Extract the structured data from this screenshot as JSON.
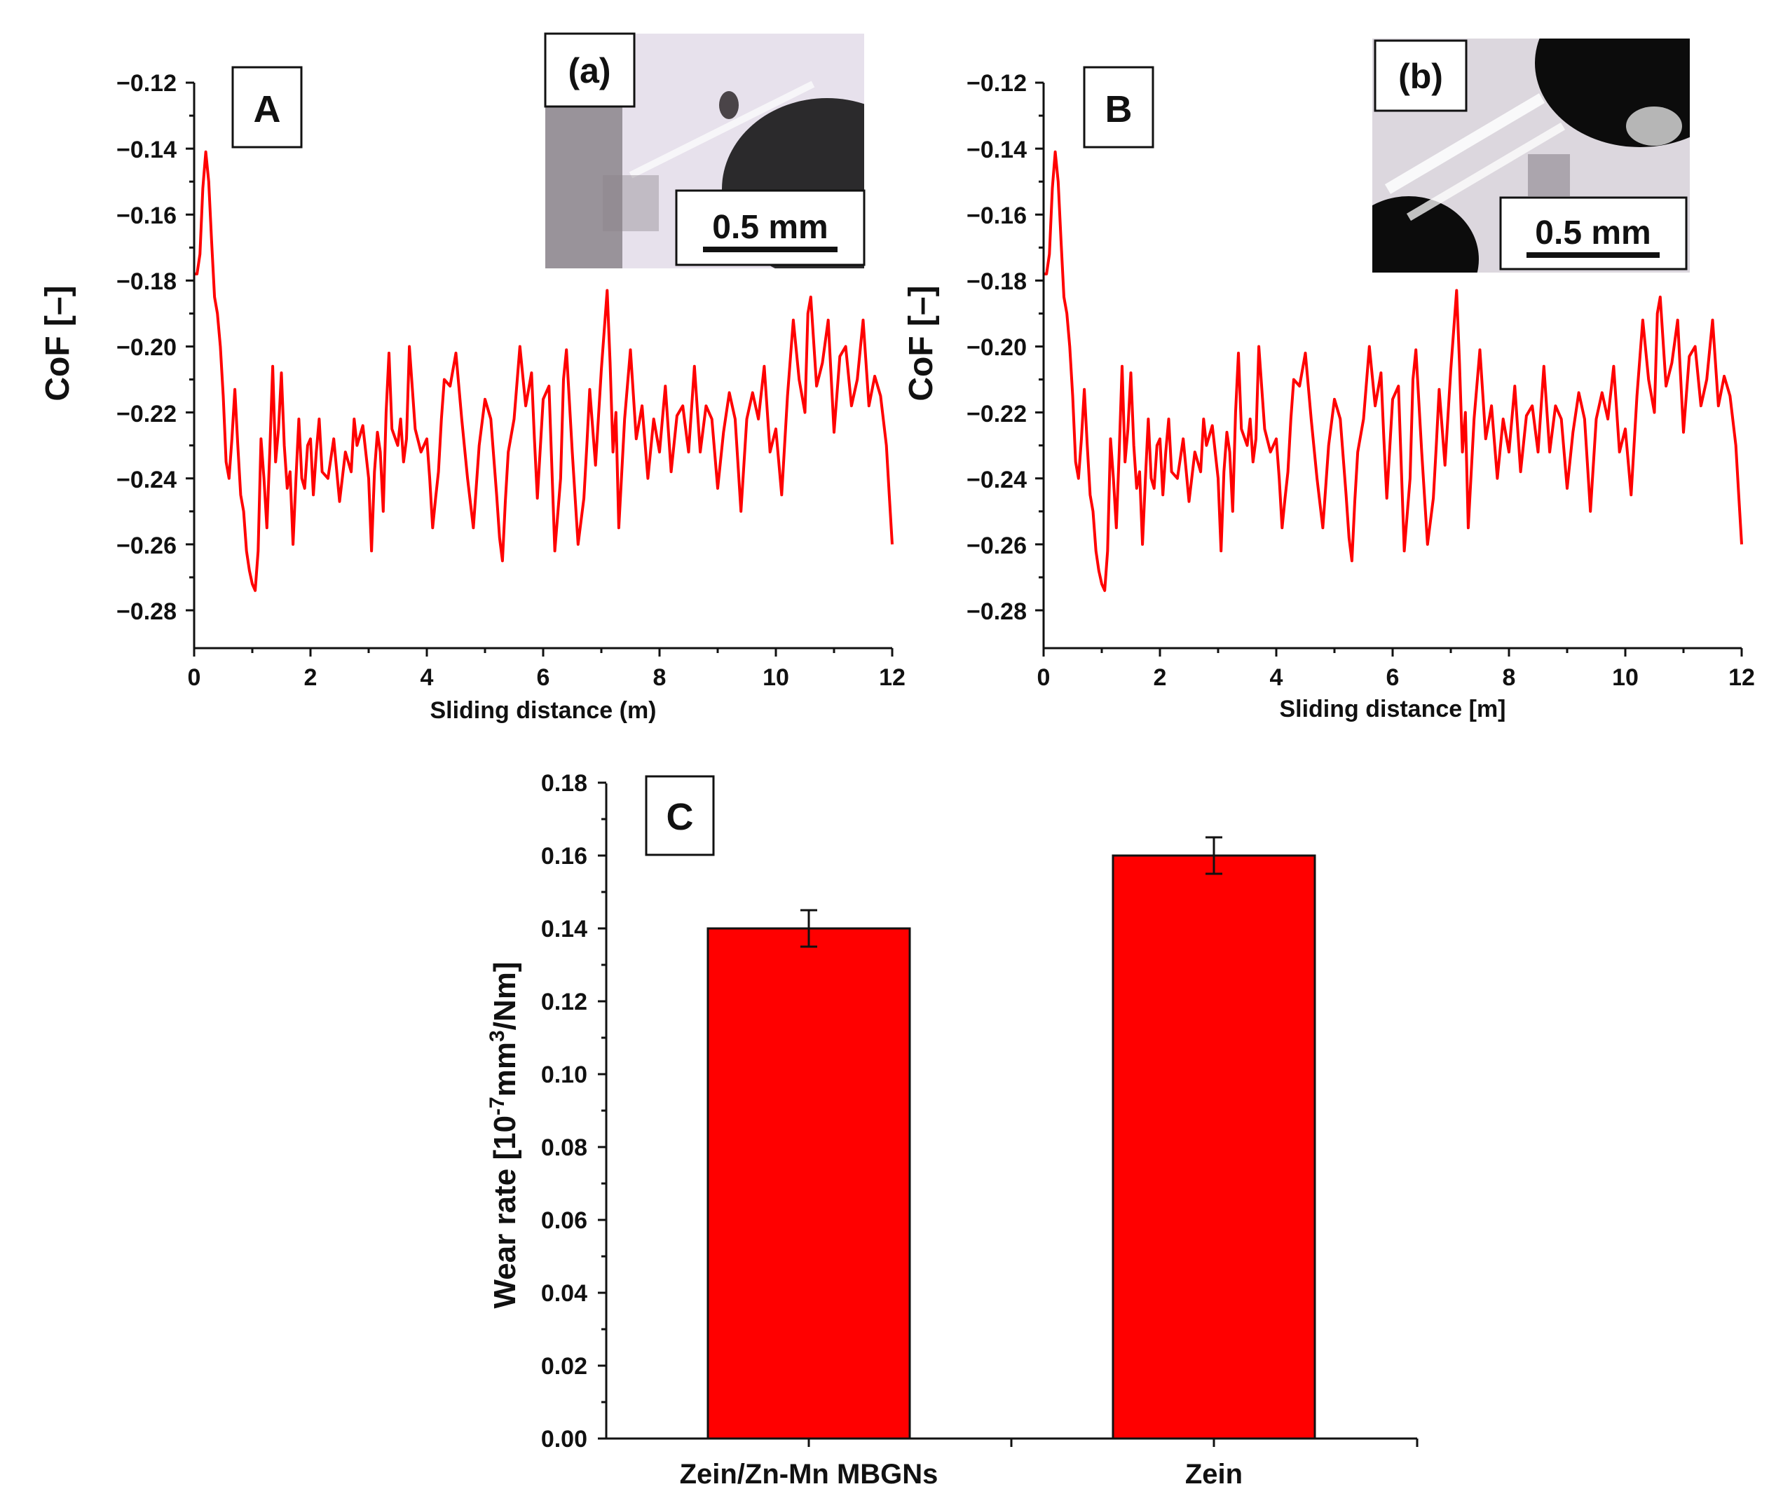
{
  "colors": {
    "series": "#ff0000",
    "axis": "#111111"
  },
  "chart_data": [
    {
      "panel": "A",
      "type": "line",
      "xlabel": "Sliding distance (m)",
      "ylabel": "CoF [–]",
      "xlim": [
        0,
        12
      ],
      "ylim": [
        -0.29,
        -0.12
      ],
      "xticks": [
        "0",
        "2",
        "4",
        "6",
        "8",
        "10",
        "12"
      ],
      "yticks": [
        "−0.12",
        "−0.14",
        "−0.16",
        "−0.18",
        "−0.20",
        "−0.22",
        "−0.24",
        "−0.26",
        "−0.28"
      ],
      "inset": {
        "label": "(a)",
        "scale_bar": "0.5 mm"
      },
      "x": [
        0,
        0.05,
        0.1,
        0.15,
        0.2,
        0.25,
        0.3,
        0.35,
        0.4,
        0.45,
        0.5,
        0.55,
        0.6,
        0.65,
        0.7,
        0.75,
        0.8,
        0.85,
        0.9,
        0.95,
        1.0,
        1.05,
        1.1,
        1.15,
        1.2,
        1.25,
        1.3,
        1.35,
        1.4,
        1.45,
        1.5,
        1.55,
        1.6,
        1.65,
        1.7,
        1.75,
        1.8,
        1.85,
        1.9,
        1.95,
        2.0,
        2.05,
        2.1,
        2.15,
        2.2,
        2.3,
        2.4,
        2.5,
        2.6,
        2.7,
        2.75,
        2.8,
        2.9,
        3.0,
        3.05,
        3.1,
        3.15,
        3.2,
        3.25,
        3.3,
        3.35,
        3.4,
        3.5,
        3.55,
        3.6,
        3.65,
        3.7,
        3.8,
        3.9,
        4.0,
        4.05,
        4.1,
        4.15,
        4.2,
        4.25,
        4.3,
        4.4,
        4.5,
        4.6,
        4.7,
        4.8,
        4.9,
        5.0,
        5.1,
        5.2,
        5.25,
        5.3,
        5.35,
        5.4,
        5.5,
        5.6,
        5.7,
        5.8,
        5.85,
        5.9,
        6.0,
        6.1,
        6.2,
        6.3,
        6.35,
        6.4,
        6.5,
        6.6,
        6.7,
        6.75,
        6.8,
        6.9,
        7.0,
        7.1,
        7.15,
        7.2,
        7.25,
        7.3,
        7.4,
        7.5,
        7.6,
        7.7,
        7.8,
        7.9,
        8.0,
        8.1,
        8.2,
        8.3,
        8.4,
        8.5,
        8.6,
        8.7,
        8.8,
        8.9,
        9.0,
        9.1,
        9.2,
        9.3,
        9.4,
        9.5,
        9.6,
        9.7,
        9.8,
        9.9,
        10.0,
        10.1,
        10.2,
        10.3,
        10.4,
        10.5,
        10.55,
        10.6,
        10.7,
        10.8,
        10.9,
        11.0,
        11.1,
        11.2,
        11.3,
        11.4,
        11.5,
        11.6,
        11.7,
        11.8,
        11.9,
        11.95,
        12.0
      ],
      "y": [
        -0.178,
        -0.178,
        -0.172,
        -0.152,
        -0.141,
        -0.15,
        -0.168,
        -0.185,
        -0.19,
        -0.2,
        -0.215,
        -0.235,
        -0.24,
        -0.228,
        -0.213,
        -0.23,
        -0.245,
        -0.25,
        -0.262,
        -0.268,
        -0.272,
        -0.274,
        -0.262,
        -0.228,
        -0.24,
        -0.255,
        -0.232,
        -0.206,
        -0.235,
        -0.225,
        -0.208,
        -0.23,
        -0.243,
        -0.238,
        -0.26,
        -0.24,
        -0.222,
        -0.24,
        -0.243,
        -0.23,
        -0.228,
        -0.245,
        -0.232,
        -0.222,
        -0.238,
        -0.24,
        -0.228,
        -0.247,
        -0.232,
        -0.238,
        -0.222,
        -0.23,
        -0.224,
        -0.24,
        -0.262,
        -0.238,
        -0.226,
        -0.232,
        -0.25,
        -0.22,
        -0.202,
        -0.225,
        -0.23,
        -0.222,
        -0.235,
        -0.228,
        -0.2,
        -0.225,
        -0.232,
        -0.228,
        -0.24,
        -0.255,
        -0.246,
        -0.238,
        -0.222,
        -0.21,
        -0.212,
        -0.202,
        -0.222,
        -0.24,
        -0.255,
        -0.23,
        -0.216,
        -0.222,
        -0.245,
        -0.258,
        -0.265,
        -0.247,
        -0.232,
        -0.222,
        -0.2,
        -0.218,
        -0.208,
        -0.228,
        -0.246,
        -0.216,
        -0.212,
        -0.262,
        -0.24,
        -0.21,
        -0.201,
        -0.232,
        -0.26,
        -0.246,
        -0.23,
        -0.213,
        -0.236,
        -0.207,
        -0.183,
        -0.205,
        -0.232,
        -0.22,
        -0.255,
        -0.222,
        -0.201,
        -0.228,
        -0.218,
        -0.24,
        -0.222,
        -0.232,
        -0.212,
        -0.238,
        -0.221,
        -0.218,
        -0.232,
        -0.206,
        -0.232,
        -0.218,
        -0.222,
        -0.243,
        -0.226,
        -0.214,
        -0.222,
        -0.25,
        -0.222,
        -0.214,
        -0.222,
        -0.206,
        -0.232,
        -0.225,
        -0.245,
        -0.215,
        -0.192,
        -0.21,
        -0.22,
        -0.19,
        -0.185,
        -0.212,
        -0.205,
        -0.192,
        -0.226,
        -0.203,
        -0.2,
        -0.218,
        -0.21,
        -0.192,
        -0.218,
        -0.209,
        -0.215,
        -0.23,
        -0.245,
        -0.26
      ]
    },
    {
      "panel": "B",
      "type": "line",
      "xlabel": "Sliding distance [m]",
      "ylabel": "CoF [–]",
      "xlim": [
        0,
        12
      ],
      "ylim": [
        -0.29,
        -0.12
      ],
      "xticks": [
        "0",
        "2",
        "4",
        "6",
        "8",
        "10",
        "12"
      ],
      "yticks": [
        "−0.12",
        "−0.14",
        "−0.16",
        "−0.18",
        "−0.20",
        "−0.22",
        "−0.24",
        "−0.26",
        "−0.28"
      ],
      "inset": {
        "label": "(b)",
        "scale_bar": "0.5 mm"
      },
      "x": [
        0,
        0.05,
        0.1,
        0.15,
        0.2,
        0.25,
        0.3,
        0.35,
        0.4,
        0.45,
        0.5,
        0.55,
        0.6,
        0.65,
        0.7,
        0.75,
        0.8,
        0.85,
        0.9,
        0.95,
        1.0,
        1.05,
        1.1,
        1.15,
        1.2,
        1.25,
        1.3,
        1.35,
        1.4,
        1.45,
        1.5,
        1.55,
        1.6,
        1.65,
        1.7,
        1.75,
        1.8,
        1.85,
        1.9,
        1.95,
        2.0,
        2.05,
        2.1,
        2.15,
        2.2,
        2.3,
        2.4,
        2.5,
        2.6,
        2.7,
        2.75,
        2.8,
        2.9,
        3.0,
        3.05,
        3.1,
        3.15,
        3.2,
        3.25,
        3.3,
        3.35,
        3.4,
        3.5,
        3.55,
        3.6,
        3.65,
        3.7,
        3.8,
        3.9,
        4.0,
        4.05,
        4.1,
        4.15,
        4.2,
        4.25,
        4.3,
        4.4,
        4.5,
        4.6,
        4.7,
        4.8,
        4.9,
        5.0,
        5.1,
        5.2,
        5.25,
        5.3,
        5.35,
        5.4,
        5.5,
        5.6,
        5.7,
        5.8,
        5.85,
        5.9,
        6.0,
        6.1,
        6.2,
        6.3,
        6.35,
        6.4,
        6.5,
        6.6,
        6.7,
        6.75,
        6.8,
        6.9,
        7.0,
        7.1,
        7.15,
        7.2,
        7.25,
        7.3,
        7.4,
        7.5,
        7.6,
        7.7,
        7.8,
        7.9,
        8.0,
        8.1,
        8.2,
        8.3,
        8.4,
        8.5,
        8.6,
        8.7,
        8.8,
        8.9,
        9.0,
        9.1,
        9.2,
        9.3,
        9.4,
        9.5,
        9.6,
        9.7,
        9.8,
        9.9,
        10.0,
        10.1,
        10.2,
        10.3,
        10.4,
        10.5,
        10.55,
        10.6,
        10.7,
        10.8,
        10.9,
        11.0,
        11.1,
        11.2,
        11.3,
        11.4,
        11.5,
        11.6,
        11.7,
        11.8,
        11.9,
        11.95,
        12.0
      ],
      "y": [
        -0.178,
        -0.178,
        -0.172,
        -0.152,
        -0.141,
        -0.15,
        -0.168,
        -0.185,
        -0.19,
        -0.2,
        -0.215,
        -0.235,
        -0.24,
        -0.228,
        -0.213,
        -0.23,
        -0.245,
        -0.25,
        -0.262,
        -0.268,
        -0.272,
        -0.274,
        -0.262,
        -0.228,
        -0.24,
        -0.255,
        -0.232,
        -0.206,
        -0.235,
        -0.225,
        -0.208,
        -0.23,
        -0.243,
        -0.238,
        -0.26,
        -0.24,
        -0.222,
        -0.24,
        -0.243,
        -0.23,
        -0.228,
        -0.245,
        -0.232,
        -0.222,
        -0.238,
        -0.24,
        -0.228,
        -0.247,
        -0.232,
        -0.238,
        -0.222,
        -0.23,
        -0.224,
        -0.24,
        -0.262,
        -0.238,
        -0.226,
        -0.232,
        -0.25,
        -0.22,
        -0.202,
        -0.225,
        -0.23,
        -0.222,
        -0.235,
        -0.228,
        -0.2,
        -0.225,
        -0.232,
        -0.228,
        -0.24,
        -0.255,
        -0.246,
        -0.238,
        -0.222,
        -0.21,
        -0.212,
        -0.202,
        -0.222,
        -0.24,
        -0.255,
        -0.23,
        -0.216,
        -0.222,
        -0.245,
        -0.258,
        -0.265,
        -0.247,
        -0.232,
        -0.222,
        -0.2,
        -0.218,
        -0.208,
        -0.228,
        -0.246,
        -0.216,
        -0.212,
        -0.262,
        -0.24,
        -0.21,
        -0.201,
        -0.232,
        -0.26,
        -0.246,
        -0.23,
        -0.213,
        -0.236,
        -0.207,
        -0.183,
        -0.205,
        -0.232,
        -0.22,
        -0.255,
        -0.222,
        -0.201,
        -0.228,
        -0.218,
        -0.24,
        -0.222,
        -0.232,
        -0.212,
        -0.238,
        -0.221,
        -0.218,
        -0.232,
        -0.206,
        -0.232,
        -0.218,
        -0.222,
        -0.243,
        -0.226,
        -0.214,
        -0.222,
        -0.25,
        -0.222,
        -0.214,
        -0.222,
        -0.206,
        -0.232,
        -0.225,
        -0.245,
        -0.215,
        -0.192,
        -0.21,
        -0.22,
        -0.19,
        -0.185,
        -0.212,
        -0.205,
        -0.192,
        -0.226,
        -0.203,
        -0.2,
        -0.218,
        -0.21,
        -0.192,
        -0.218,
        -0.209,
        -0.215,
        -0.23,
        -0.245,
        -0.26
      ]
    },
    {
      "panel": "C",
      "type": "bar",
      "categories": [
        "Zein/Zn-Mn MBGNs",
        "Zein"
      ],
      "values": [
        0.14,
        0.16
      ],
      "errors": [
        0.005,
        0.005
      ],
      "ylabel_main": "Wear rate [10",
      "ylabel_exp1": "-7",
      "ylabel_mid": "mm",
      "ylabel_exp2": "3",
      "ylabel_end": "/Nm]",
      "ylim": [
        0,
        0.18
      ],
      "yticks": [
        "0.00",
        "0.02",
        "0.04",
        "0.06",
        "0.08",
        "0.10",
        "0.12",
        "0.14",
        "0.16",
        "0.18"
      ]
    }
  ]
}
